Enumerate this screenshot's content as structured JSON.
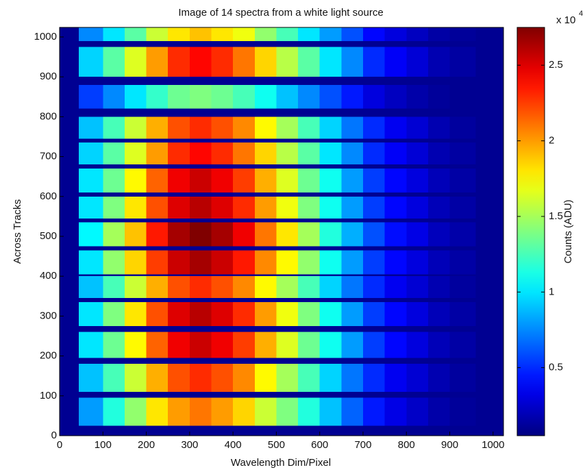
{
  "chart_data": {
    "type": "heatmap",
    "title": "Image of 14 spectra from a white light source",
    "xlabel": "Wavelength Dim/Pixel",
    "ylabel": "Across Tracks",
    "colorbar_label": "Counts (ADU)",
    "colorbar_scale": "x 10",
    "colorbar_exponent": "4",
    "xlim": [
      0,
      1024
    ],
    "ylim": [
      0,
      1024
    ],
    "xticks": [
      0,
      100,
      200,
      300,
      400,
      500,
      600,
      700,
      800,
      900,
      1000
    ],
    "yticks": [
      0,
      100,
      200,
      300,
      400,
      500,
      600,
      700,
      800,
      900,
      1000
    ],
    "clim": [
      0.05,
      2.75
    ],
    "cticks": [
      0.5,
      1,
      1.5,
      2,
      2.5
    ],
    "colormap": "jet",
    "background": 0.1,
    "x": [
      0,
      44,
      100,
      150,
      200,
      250,
      300,
      350,
      400,
      450,
      500,
      550,
      600,
      650,
      700,
      750,
      800,
      850,
      900,
      960,
      1024
    ],
    "rows": [
      {
        "y": [
          25,
          95
        ],
        "values": [
          0.1,
          0.8,
          1.15,
          1.45,
          1.8,
          2.0,
          2.1,
          2.0,
          1.85,
          1.6,
          1.4,
          1.15,
          0.9,
          0.65,
          0.45,
          0.32,
          0.24,
          0.16,
          0.12,
          0.1
        ]
      },
      {
        "y": [
          110,
          180
        ],
        "values": [
          0.1,
          0.9,
          1.25,
          1.6,
          1.95,
          2.2,
          2.3,
          2.2,
          2.05,
          1.75,
          1.5,
          1.25,
          0.95,
          0.7,
          0.5,
          0.35,
          0.27,
          0.18,
          0.13,
          0.1
        ]
      },
      {
        "y": [
          195,
          260
        ],
        "values": [
          0.1,
          1.0,
          1.35,
          1.75,
          2.15,
          2.45,
          2.55,
          2.45,
          2.25,
          1.95,
          1.65,
          1.35,
          1.1,
          0.8,
          0.55,
          0.4,
          0.3,
          0.2,
          0.15,
          0.1
        ]
      },
      {
        "y": [
          275,
          335
        ],
        "values": [
          0.1,
          1.0,
          1.4,
          1.8,
          2.2,
          2.5,
          2.6,
          2.5,
          2.3,
          2.0,
          1.7,
          1.4,
          1.1,
          0.8,
          0.55,
          0.4,
          0.3,
          0.2,
          0.15,
          0.1
        ]
      },
      {
        "y": [
          345,
          400
        ],
        "values": [
          0.1,
          0.9,
          1.25,
          1.6,
          1.95,
          2.2,
          2.3,
          2.2,
          2.05,
          1.75,
          1.5,
          1.25,
          0.95,
          0.7,
          0.5,
          0.35,
          0.27,
          0.18,
          0.13,
          0.1
        ]
      },
      {
        "y": [
          405,
          465
        ],
        "values": [
          0.1,
          1.0,
          1.45,
          1.85,
          2.25,
          2.55,
          2.65,
          2.55,
          2.35,
          2.05,
          1.75,
          1.45,
          1.1,
          0.8,
          0.55,
          0.4,
          0.3,
          0.2,
          0.15,
          0.1
        ]
      },
      {
        "y": [
          475,
          535
        ],
        "values": [
          0.1,
          1.05,
          1.5,
          1.9,
          2.35,
          2.65,
          2.75,
          2.65,
          2.45,
          2.1,
          1.8,
          1.5,
          1.15,
          0.85,
          0.6,
          0.42,
          0.32,
          0.21,
          0.16,
          0.1
        ]
      },
      {
        "y": [
          545,
          600
        ],
        "values": [
          0.1,
          1.0,
          1.4,
          1.8,
          2.2,
          2.5,
          2.6,
          2.5,
          2.3,
          2.0,
          1.7,
          1.4,
          1.1,
          0.8,
          0.55,
          0.4,
          0.3,
          0.2,
          0.15,
          0.1
        ]
      },
      {
        "y": [
          610,
          670
        ],
        "values": [
          0.1,
          1.0,
          1.35,
          1.75,
          2.15,
          2.45,
          2.55,
          2.45,
          2.25,
          1.95,
          1.65,
          1.35,
          1.1,
          0.8,
          0.55,
          0.4,
          0.3,
          0.2,
          0.15,
          0.1
        ]
      },
      {
        "y": [
          680,
          735
        ],
        "values": [
          0.1,
          0.95,
          1.3,
          1.65,
          2.0,
          2.3,
          2.4,
          2.3,
          2.1,
          1.85,
          1.55,
          1.3,
          1.0,
          0.75,
          0.5,
          0.37,
          0.28,
          0.18,
          0.14,
          0.1
        ]
      },
      {
        "y": [
          745,
          800
        ],
        "values": [
          0.1,
          0.9,
          1.25,
          1.6,
          1.95,
          2.2,
          2.3,
          2.2,
          2.05,
          1.75,
          1.5,
          1.25,
          0.95,
          0.7,
          0.5,
          0.35,
          0.27,
          0.18,
          0.13,
          0.1
        ]
      },
      {
        "y": [
          820,
          880
        ],
        "values": [
          0.1,
          0.55,
          0.75,
          1.0,
          1.2,
          1.35,
          1.4,
          1.35,
          1.25,
          1.1,
          0.9,
          0.75,
          0.6,
          0.45,
          0.3,
          0.22,
          0.16,
          0.12,
          0.1,
          0.1
        ]
      },
      {
        "y": [
          900,
          975
        ],
        "values": [
          0.1,
          0.95,
          1.3,
          1.65,
          2.0,
          2.3,
          2.4,
          2.3,
          2.1,
          1.85,
          1.55,
          1.3,
          1.0,
          0.75,
          0.5,
          0.37,
          0.28,
          0.18,
          0.14,
          0.1
        ]
      },
      {
        "y": [
          990,
          1024
        ],
        "values": [
          0.1,
          0.75,
          1.0,
          1.3,
          1.6,
          1.8,
          1.9,
          1.8,
          1.7,
          1.45,
          1.25,
          1.0,
          0.8,
          0.6,
          0.4,
          0.3,
          0.22,
          0.15,
          0.12,
          0.1
        ]
      }
    ]
  }
}
